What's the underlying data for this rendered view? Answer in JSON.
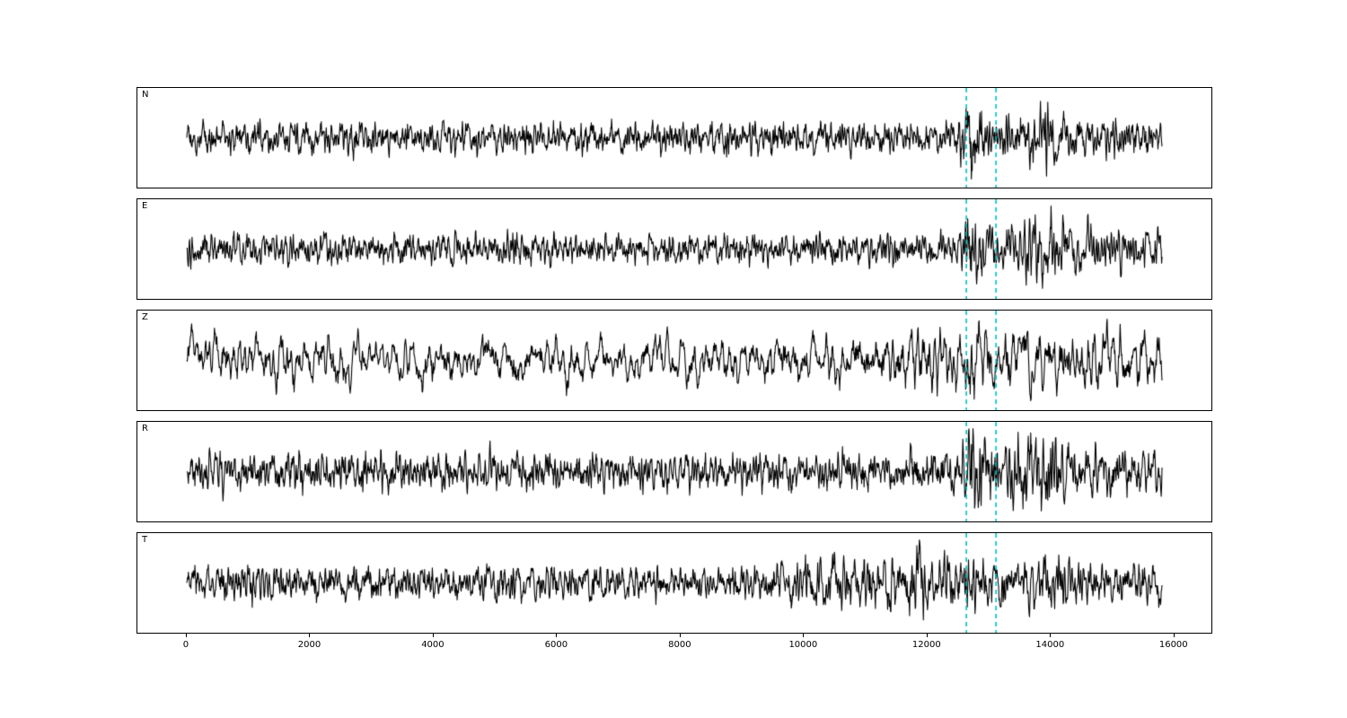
{
  "chart_data": {
    "type": "line",
    "title": "",
    "xlabel": "",
    "ylabel": "",
    "description": "Five stacked seismogram traces (components N, E, Z, R, T) of band-limited noise with an event window marked by two dashed cyan vertical lines",
    "x_data_range": [
      0,
      15800
    ],
    "xlim": [
      -800,
      16600
    ],
    "x_ticks": [
      0,
      2000,
      4000,
      6000,
      8000,
      10000,
      12000,
      14000,
      16000
    ],
    "line_color": "#000000",
    "background_color": "#ffffff",
    "grid": false,
    "legend": false,
    "vlines": {
      "positions": [
        12630,
        13110
      ],
      "color": "#00bfbf",
      "style": "dashed"
    },
    "panels": [
      {
        "label": "N",
        "seed": 1101,
        "smooth": 3,
        "npts": 2400,
        "amp": 46,
        "envelope": [
          [
            0,
            1.0
          ],
          [
            1500,
            1.05
          ],
          [
            6500,
            0.95
          ],
          [
            11000,
            1.0
          ],
          [
            12450,
            0.95
          ],
          [
            12700,
            2.6
          ],
          [
            12950,
            1.3
          ],
          [
            13400,
            1.1
          ],
          [
            13950,
            2.3
          ],
          [
            14200,
            1.25
          ],
          [
            15000,
            1.3
          ],
          [
            15800,
            1.1
          ]
        ]
      },
      {
        "label": "E",
        "seed": 2202,
        "smooth": 3,
        "npts": 2400,
        "amp": 48,
        "envelope": [
          [
            0,
            1.1
          ],
          [
            5000,
            1.0
          ],
          [
            8000,
            0.95
          ],
          [
            11000,
            1.0
          ],
          [
            12500,
            1.0
          ],
          [
            12700,
            2.5
          ],
          [
            13000,
            1.2
          ],
          [
            13900,
            2.4
          ],
          [
            14300,
            1.5
          ],
          [
            15200,
            1.4
          ],
          [
            15800,
            1.2
          ]
        ]
      },
      {
        "label": "Z",
        "seed": 3303,
        "smooth": 7,
        "npts": 2400,
        "amp": 46,
        "envelope": [
          [
            0,
            1.2
          ],
          [
            3000,
            1.1
          ],
          [
            6000,
            1.0
          ],
          [
            11000,
            1.1
          ],
          [
            11900,
            1.6
          ],
          [
            12700,
            1.9
          ],
          [
            13200,
            1.4
          ],
          [
            14000,
            1.6
          ],
          [
            15000,
            1.5
          ],
          [
            15800,
            1.2
          ]
        ]
      },
      {
        "label": "R",
        "seed": 4404,
        "smooth": 3,
        "npts": 2400,
        "amp": 48,
        "envelope": [
          [
            0,
            1.05
          ],
          [
            7000,
            0.95
          ],
          [
            11000,
            0.95
          ],
          [
            12550,
            1.0
          ],
          [
            12750,
            2.7
          ],
          [
            13000,
            1.3
          ],
          [
            13900,
            2.2
          ],
          [
            14200,
            1.3
          ],
          [
            15100,
            1.2
          ],
          [
            15800,
            1.1
          ]
        ]
      },
      {
        "label": "T",
        "seed": 5505,
        "smooth": 3,
        "npts": 2400,
        "amp": 48,
        "envelope": [
          [
            0,
            1.0
          ],
          [
            4000,
            1.05
          ],
          [
            9000,
            1.0
          ],
          [
            11500,
            1.7
          ],
          [
            11800,
            2.2
          ],
          [
            12100,
            1.4
          ],
          [
            12700,
            1.8
          ],
          [
            13100,
            1.3
          ],
          [
            14000,
            1.8
          ],
          [
            14400,
            1.2
          ],
          [
            15300,
            1.4
          ],
          [
            15800,
            1.1
          ]
        ]
      }
    ]
  }
}
